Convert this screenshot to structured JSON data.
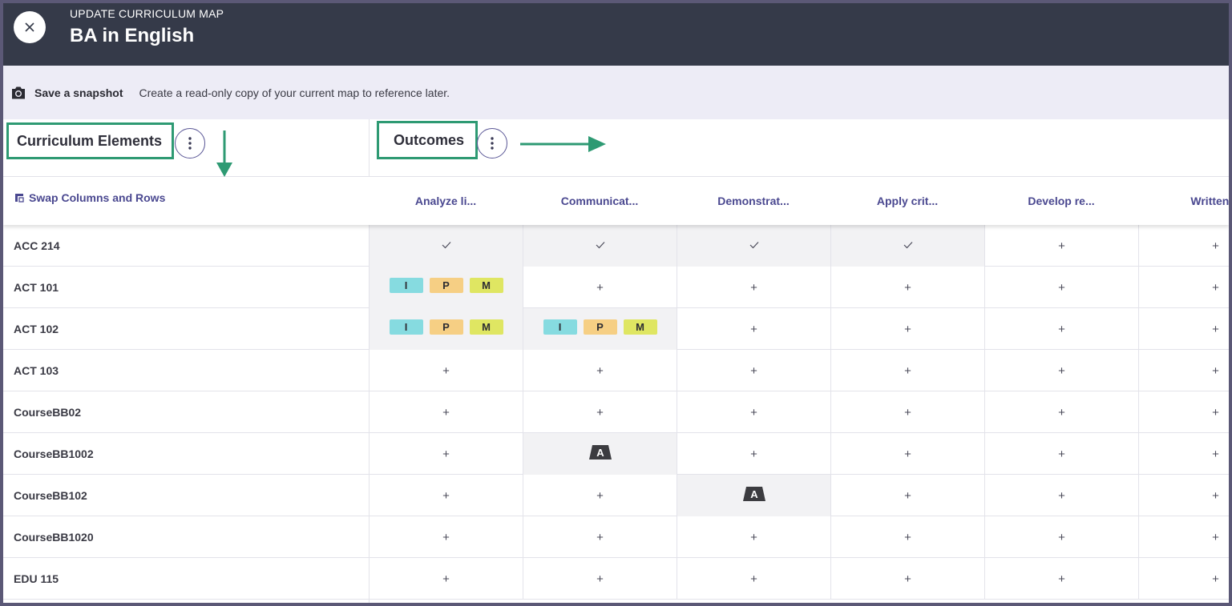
{
  "header": {
    "kicker": "UPDATE CURRICULUM MAP",
    "title": "BA in English",
    "colors": {
      "bar": "#353a49",
      "accent": "#2e9a73",
      "link": "#4a4890"
    }
  },
  "snapshot": {
    "icon": "camera-icon",
    "link_label": "Save a snapshot",
    "description": "Create a read-only copy of your current map to reference later."
  },
  "sections": {
    "elements_label": "Curriculum Elements",
    "outcomes_label": "Outcomes"
  },
  "swap_label": "Swap Columns and Rows",
  "columns": [
    "Analyze li...",
    "Communicat...",
    "Demonstrat...",
    "Apply crit...",
    "Develop re...",
    "Written S"
  ],
  "rows": [
    {
      "label": "ACC 214",
      "cells": [
        "check",
        "check",
        "check",
        "check",
        "plus",
        "plus"
      ]
    },
    {
      "label": "ACT 101",
      "cells": [
        "IPM",
        "plus",
        "plus",
        "plus",
        "plus",
        "plus"
      ]
    },
    {
      "label": "ACT 102",
      "cells": [
        "IPM",
        "IPM",
        "plus",
        "plus",
        "plus",
        "plus"
      ]
    },
    {
      "label": "ACT 103",
      "cells": [
        "plus",
        "plus",
        "plus",
        "plus",
        "plus",
        "plus"
      ]
    },
    {
      "label": "CourseBB02",
      "cells": [
        "plus",
        "plus",
        "plus",
        "plus",
        "plus",
        "plus"
      ]
    },
    {
      "label": "CourseBB1002",
      "cells": [
        "plus",
        "A",
        "plus",
        "plus",
        "plus",
        "plus"
      ]
    },
    {
      "label": "CourseBB102",
      "cells": [
        "plus",
        "plus",
        "A",
        "plus",
        "plus",
        "plus"
      ]
    },
    {
      "label": "CourseBB1020",
      "cells": [
        "plus",
        "plus",
        "plus",
        "plus",
        "plus",
        "plus"
      ]
    },
    {
      "label": "EDU 115",
      "cells": [
        "plus",
        "plus",
        "plus",
        "plus",
        "plus",
        "plus"
      ]
    }
  ],
  "chip_labels": {
    "i": "I",
    "p": "P",
    "m": "M",
    "a": "A"
  },
  "plus_glyph": "+"
}
